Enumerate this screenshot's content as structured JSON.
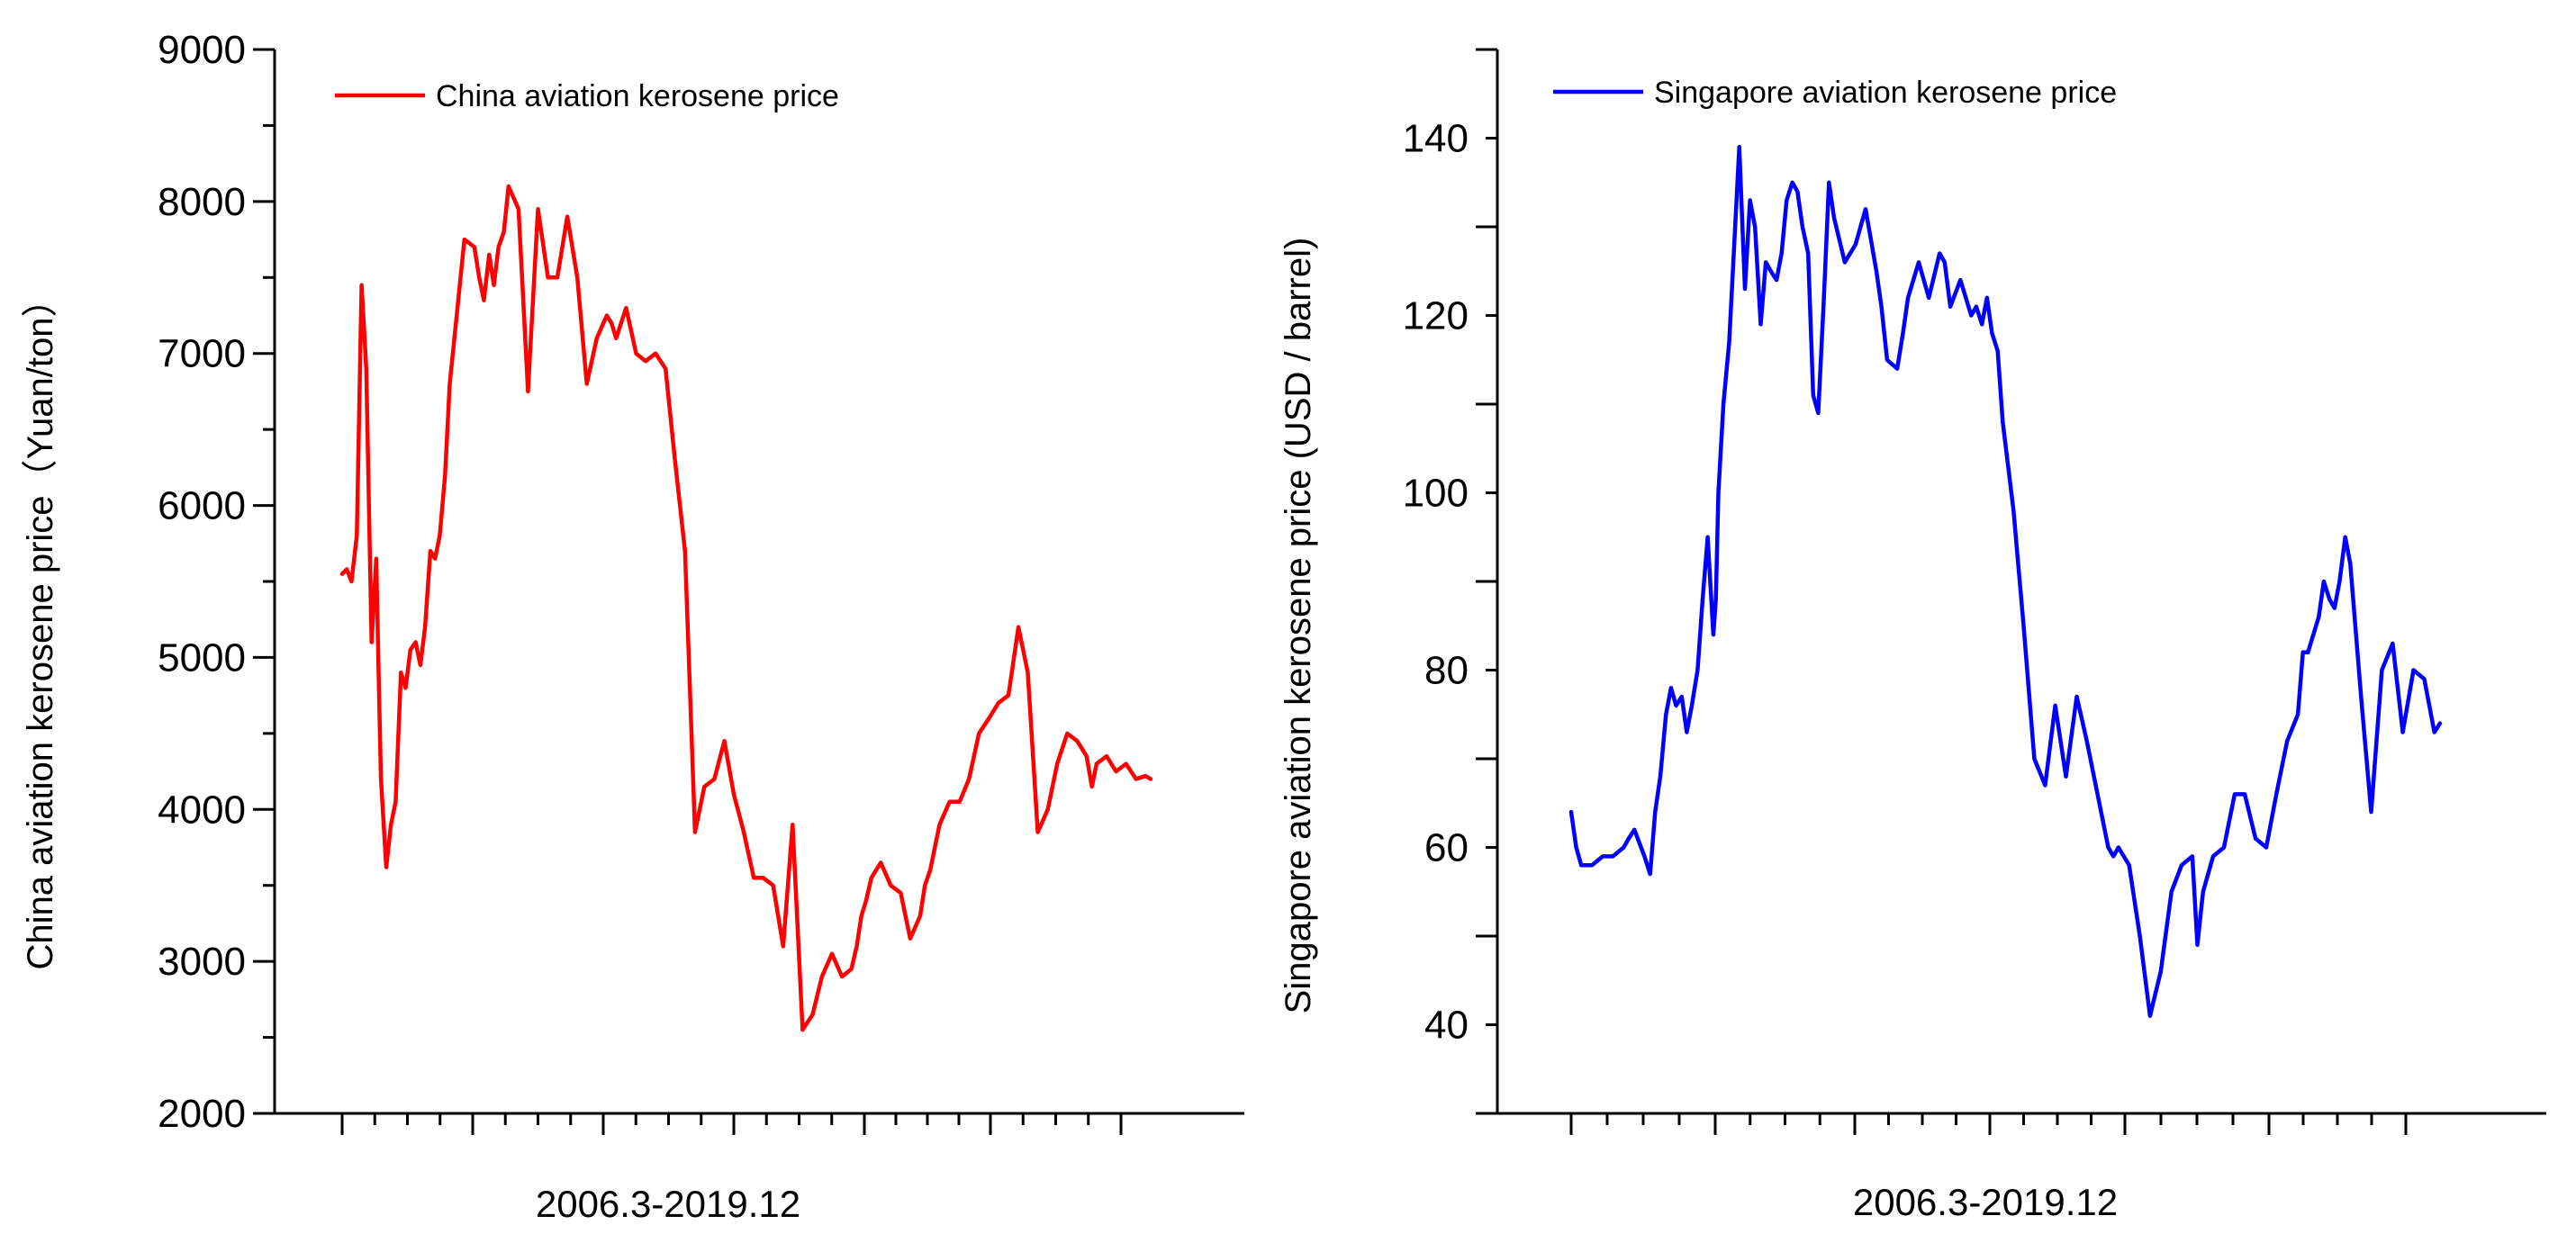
{
  "chart_data": [
    {
      "type": "line",
      "title": "",
      "legend": "China aviation kerosene price",
      "legend_position": "top-left",
      "xlabel": "2006.3-2019.12",
      "ylabel": "China aviation kerosene price（Yuan/ton）",
      "ylim": [
        2000,
        9000
      ],
      "yticks": [
        "9000",
        "8000",
        "7000",
        "6000",
        "5000",
        "4000",
        "3000",
        "2000"
      ],
      "x_range": [
        2006.17,
        2019.92
      ],
      "color": "#ff0000",
      "series": [
        {
          "name": "China aviation kerosene price",
          "x": [
            2006.17,
            2006.25,
            2006.33,
            2006.42,
            2006.5,
            2006.58,
            2006.67,
            2006.75,
            2006.79,
            2006.83,
            2006.92,
            2007.0,
            2007.08,
            2007.17,
            2007.25,
            2007.33,
            2007.42,
            2007.5,
            2007.58,
            2007.67,
            2007.75,
            2007.83,
            2007.92,
            2008.0,
            2008.25,
            2008.42,
            2008.5,
            2008.58,
            2008.67,
            2008.75,
            2008.83,
            2008.92,
            2009.0,
            2009.17,
            2009.33,
            2009.5,
            2009.67,
            2009.83,
            2010.0,
            2010.17,
            2010.33,
            2010.5,
            2010.67,
            2010.75,
            2010.83,
            2011.0,
            2011.17,
            2011.33,
            2011.5,
            2011.67,
            2011.83,
            2012.0,
            2012.17,
            2012.33,
            2012.5,
            2012.67,
            2012.83,
            2013.0,
            2013.17,
            2013.33,
            2013.5,
            2013.67,
            2013.83,
            2014.0,
            2014.17,
            2014.33,
            2014.5,
            2014.67,
            2014.83,
            2014.92,
            2015.0,
            2015.08,
            2015.17,
            2015.25,
            2015.33,
            2015.5,
            2015.67,
            2015.83,
            2016.0,
            2016.08,
            2016.17,
            2016.25,
            2016.33,
            2016.5,
            2016.67,
            2016.83,
            2017.0,
            2017.17,
            2017.33,
            2017.5,
            2017.67,
            2017.83,
            2018.0,
            2018.17,
            2018.33,
            2018.5,
            2018.67,
            2018.83,
            2018.92,
            2019.0,
            2019.17,
            2019.33,
            2019.5,
            2019.67,
            2019.83,
            2019.92
          ],
          "values": [
            5550,
            5580,
            5500,
            5800,
            7450,
            6900,
            5100,
            5650,
            4900,
            4200,
            3620,
            3900,
            4050,
            4900,
            4800,
            5050,
            5100,
            4950,
            5200,
            5700,
            5650,
            5800,
            6200,
            6800,
            7750,
            7700,
            7500,
            7350,
            7650,
            7450,
            7700,
            7800,
            8100,
            7950,
            6750,
            7950,
            7500,
            7500,
            7900,
            7500,
            6800,
            7100,
            7250,
            7200,
            7100,
            7300,
            7000,
            6950,
            7000,
            6900,
            6300,
            5700,
            3850,
            4150,
            4200,
            4450,
            4100,
            3850,
            3550,
            3550,
            3500,
            3100,
            3900,
            2550,
            2650,
            2900,
            3050,
            2900,
            2950,
            3100,
            3300,
            3400,
            3550,
            3600,
            3650,
            3500,
            3450,
            3150,
            3300,
            3500,
            3600,
            3750,
            3900,
            4050,
            4050,
            4200,
            4500,
            4600,
            4700,
            4750,
            5200,
            4900,
            3850,
            4000,
            4300,
            4500,
            4450,
            4350,
            4150,
            4300,
            4350,
            4250,
            4300,
            4200,
            4220,
            4200
          ]
        }
      ]
    },
    {
      "type": "line",
      "title": "",
      "legend": "Singapore aviation kerosene price",
      "legend_position": "top-left",
      "xlabel": "2006.3-2019.12",
      "ylabel": "Singapore aviation kerosene price (USD / barrel)",
      "ylim": [
        30,
        150
      ],
      "yticks": [
        "140",
        "120",
        "100",
        "80",
        "60",
        "40"
      ],
      "x_range": [
        2006.17,
        2019.92
      ],
      "color": "#0000ff",
      "series": [
        {
          "name": "Singapore aviation kerosene price",
          "x": [
            2006.17,
            2006.25,
            2006.33,
            2006.5,
            2006.67,
            2006.83,
            2007.0,
            2007.08,
            2007.17,
            2007.33,
            2007.42,
            2007.5,
            2007.58,
            2007.67,
            2007.75,
            2007.83,
            2007.92,
            2008.0,
            2008.08,
            2008.17,
            2008.25,
            2008.33,
            2008.42,
            2008.46,
            2008.5,
            2008.58,
            2008.67,
            2008.75,
            2008.83,
            2008.92,
            2009.0,
            2009.08,
            2009.17,
            2009.25,
            2009.33,
            2009.42,
            2009.5,
            2009.58,
            2009.67,
            2009.75,
            2009.83,
            2009.92,
            2010.0,
            2010.08,
            2010.17,
            2010.25,
            2010.33,
            2010.5,
            2010.67,
            2010.83,
            2011.0,
            2011.08,
            2011.17,
            2011.33,
            2011.42,
            2011.5,
            2011.67,
            2011.83,
            2012.0,
            2012.08,
            2012.17,
            2012.33,
            2012.5,
            2012.58,
            2012.67,
            2012.75,
            2012.83,
            2012.92,
            2013.0,
            2013.17,
            2013.33,
            2013.5,
            2013.67,
            2013.83,
            2014.0,
            2014.17,
            2014.33,
            2014.5,
            2014.67,
            2014.75,
            2014.83,
            2015.0,
            2015.17,
            2015.33,
            2015.5,
            2015.67,
            2015.83,
            2016.0,
            2016.08,
            2016.17,
            2016.33,
            2016.5,
            2016.67,
            2016.83,
            2017.0,
            2017.17,
            2017.33,
            2017.5,
            2017.67,
            2017.75,
            2017.83,
            2018.0,
            2018.08,
            2018.17,
            2018.25,
            2018.33,
            2018.42,
            2018.5,
            2018.67,
            2018.83,
            2019.0,
            2019.17,
            2019.33,
            2019.5,
            2019.67,
            2019.83,
            2019.92
          ],
          "values": [
            64,
            60,
            58,
            58,
            59,
            59,
            60,
            61,
            62,
            59,
            57,
            64,
            68,
            75,
            78,
            76,
            77,
            73,
            76,
            80,
            88,
            95,
            84,
            88,
            100,
            110,
            117,
            128,
            139,
            123,
            133,
            130,
            119,
            126,
            125,
            124,
            127,
            133,
            135,
            134,
            130,
            127,
            111,
            109,
            122,
            135,
            131,
            126,
            128,
            132,
            125,
            121,
            115,
            114,
            118,
            122,
            126,
            122,
            127,
            126,
            121,
            124,
            120,
            121,
            119,
            122,
            118,
            116,
            108,
            98,
            85,
            70,
            67,
            76,
            68,
            77,
            72,
            66,
            60,
            59,
            60,
            58,
            50,
            41,
            46,
            55,
            58,
            59,
            49,
            55,
            59,
            60,
            66,
            66,
            61,
            60,
            66,
            72,
            75,
            82,
            82,
            86,
            90,
            88,
            87,
            90,
            95,
            92,
            77,
            64,
            80,
            83,
            73,
            80,
            79,
            73,
            74
          ]
        }
      ]
    }
  ]
}
